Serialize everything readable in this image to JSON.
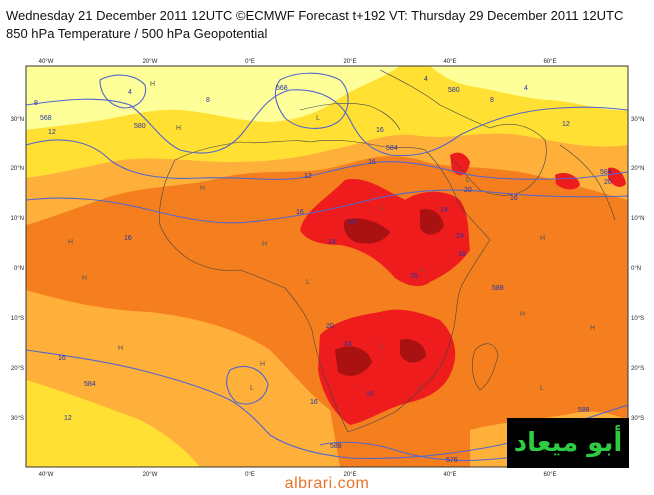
{
  "title_line1": "Wednesday 21 December 2011 12UTC ©ECMWF Forecast t+192 VT: Thursday 29 December 2011 12UTC",
  "title_line2": "850 hPa Temperature / 500 hPa Geopotential",
  "map": {
    "lon_ticks": [
      "40°W",
      "20°W",
      "0°E",
      "20°E",
      "40°E",
      "60°E"
    ],
    "lat_ticks": [
      "30°N",
      "20°N",
      "10°N",
      "0°N",
      "10°S",
      "20°S",
      "30°S"
    ],
    "colors": {
      "pale_yellow": "#ffff99",
      "yellow": "#ffe033",
      "light_orange": "#ffb03b",
      "orange": "#f57f1e",
      "red": "#ee1c1c",
      "dark_red": "#aa1111",
      "contour": "#5566cc",
      "coast": "#444444"
    },
    "temp_labels": [
      "4",
      "4",
      "4",
      "8",
      "8",
      "8",
      "12",
      "12",
      "12",
      "12",
      "16",
      "16",
      "16",
      "16",
      "16",
      "16",
      "16",
      "16",
      "16",
      "20",
      "20",
      "20",
      "20",
      "24",
      "24",
      "24",
      "24",
      "24"
    ],
    "geo_labels": [
      "568",
      "568",
      "580",
      "580",
      "584",
      "584",
      "584",
      "588",
      "588",
      "588",
      "576"
    ],
    "pressure_centers": [
      "H",
      "L",
      "H",
      "L",
      "H",
      "L",
      "H",
      "H",
      "L",
      "H",
      "H",
      "L",
      "H",
      "L",
      "H",
      "H",
      "L",
      "L",
      "H",
      "L"
    ]
  },
  "logo_text": "أبو ميعاد",
  "watermark": "albrari.com"
}
